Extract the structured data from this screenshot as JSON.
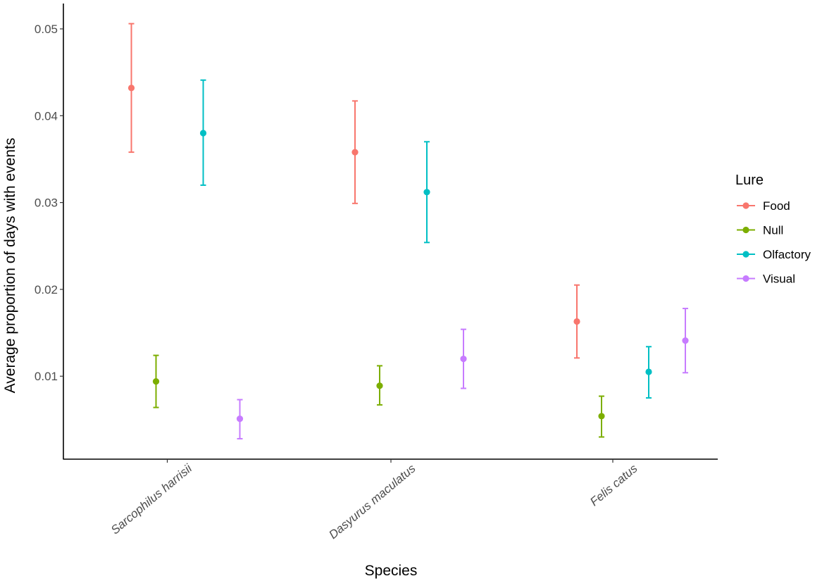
{
  "chart_data": {
    "type": "scatter",
    "subtype": "point-with-error-bars",
    "title": "",
    "xlabel": "Species",
    "ylabel": "Average proportion of days with events",
    "categories": [
      "Sarcophilus harrisii",
      "Dasyurus maculatus",
      "Felis catus"
    ],
    "yticks": [
      "0.01",
      "0.02",
      "0.03",
      "0.04",
      "0.05"
    ],
    "ylim": [
      0.0,
      0.053
    ],
    "grid": false,
    "legend": {
      "title": "Lure",
      "position": "right"
    },
    "series": [
      {
        "name": "Food",
        "color": "#F8766D",
        "values": [
          0.0432,
          0.0358,
          0.0163
        ],
        "lower": [
          0.0358,
          0.0299,
          0.0121
        ],
        "upper": [
          0.0506,
          0.0417,
          0.0205
        ]
      },
      {
        "name": "Null",
        "color": "#7CAE00",
        "values": [
          0.0094,
          0.0089,
          0.0054
        ],
        "lower": [
          0.0064,
          0.0067,
          0.003
        ],
        "upper": [
          0.0124,
          0.0112,
          0.0077
        ]
      },
      {
        "name": "Olfactory",
        "color": "#00BFC4",
        "values": [
          0.038,
          0.0312,
          0.0105
        ],
        "lower": [
          0.032,
          0.0254,
          0.0075
        ],
        "upper": [
          0.0441,
          0.037,
          0.0134
        ]
      },
      {
        "name": "Visual",
        "color": "#C77CFF",
        "values": [
          0.0051,
          0.012,
          0.0141
        ],
        "lower": [
          0.0028,
          0.0086,
          0.0104
        ],
        "upper": [
          0.0073,
          0.0154,
          0.0178
        ]
      }
    ]
  }
}
